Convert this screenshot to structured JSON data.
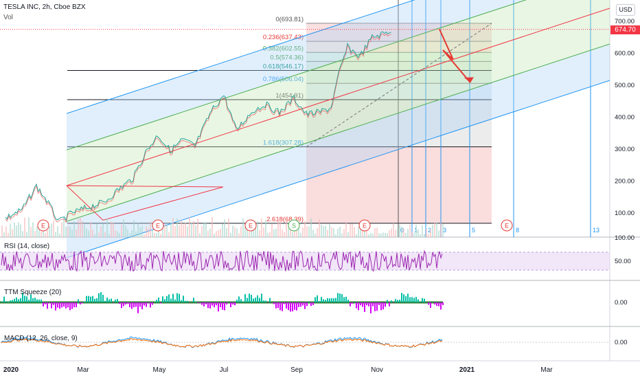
{
  "header": {
    "title": "TESLA INC, 2h, Cboe BZX",
    "volume_label": "Vol",
    "currency_button": "USD",
    "last_price": "674.70"
  },
  "panes": {
    "rsi_label": "RSI (14, close)",
    "squeeze_label": "TTM Squeeze (20)",
    "macd_label": "MACD (12, 26, close, 9)"
  },
  "colors": {
    "up": "#26a69a",
    "down": "#ef5350",
    "channel_outer": "#2196f3",
    "channel_inner": "#4caf50",
    "median": "#f23645",
    "rsi": "#9c27b0",
    "price_badge": "#f23645"
  },
  "chart_data": {
    "type": "line",
    "title": "TESLA INC, 2h, Cboe BZX",
    "x_axis": {
      "ticks": [
        "2020",
        "Mar",
        "May",
        "Jul",
        "Sep",
        "Nov",
        "2021",
        "Mar"
      ]
    },
    "y_axis": {
      "ticks": [
        "100.00",
        "200.00",
        "300.00",
        "400.00",
        "500.00",
        "600.00",
        "700.00"
      ],
      "ylim": [
        25,
        730
      ]
    },
    "price_path": [
      [
        0,
        85
      ],
      [
        0.08,
        110
      ],
      [
        0.15,
        185
      ],
      [
        0.2,
        140
      ],
      [
        0.26,
        72
      ],
      [
        0.32,
        100
      ],
      [
        0.4,
        118
      ],
      [
        0.48,
        135
      ],
      [
        0.55,
        175
      ],
      [
        0.62,
        210
      ],
      [
        0.68,
        290
      ],
      [
        0.74,
        345
      ],
      [
        0.8,
        295
      ],
      [
        0.86,
        330
      ],
      [
        0.92,
        310
      ],
      [
        1.0,
        420
      ],
      [
        1.06,
        470
      ],
      [
        1.12,
        360
      ],
      [
        1.2,
        420
      ],
      [
        1.26,
        440
      ],
      [
        1.33,
        415
      ],
      [
        1.4,
        460
      ],
      [
        1.46,
        410
      ],
      [
        1.52,
        415
      ],
      [
        1.58,
        430
      ],
      [
        1.62,
        540
      ],
      [
        1.66,
        620
      ],
      [
        1.72,
        590
      ],
      [
        1.78,
        650
      ],
      [
        1.84,
        662
      ],
      [
        1.88,
        674.7
      ]
    ],
    "fibonacci_retracement": [
      {
        "label": "0(693.81)",
        "value": 693.81
      },
      {
        "label": "0.236(637.43)",
        "value": 637.43
      },
      {
        "label": "0.382(602.55)",
        "value": 602.55
      },
      {
        "label": "0.5(574.36)",
        "value": 574.36
      },
      {
        "label": "0.618(546.17)",
        "value": 546.17
      },
      {
        "label": "0.786(506.04)",
        "value": 506.04
      },
      {
        "label": "1(454.91)",
        "value": 454.91
      },
      {
        "label": "1.618(307.28)",
        "value": 307.28
      },
      {
        "label": "2.618(68.39)",
        "value": 68.39
      }
    ],
    "fib_time_zone_labels": [
      "0",
      "1",
      "2",
      "3",
      "5",
      "8",
      "13"
    ],
    "event_markers": [
      "E",
      "E",
      "E",
      "S",
      "E",
      "E"
    ],
    "last_price": 674.7,
    "rsi": {
      "label": "RSI (14, close)",
      "ticks": [
        "100.00",
        "50.00"
      ],
      "overbought": 70,
      "oversold": 30
    },
    "ttm_squeeze": {
      "label": "TTM Squeeze (20)",
      "ticks": [
        "0.00"
      ]
    },
    "macd": {
      "label": "MACD (12, 26, close, 9)",
      "ticks": [
        "0.00"
      ]
    }
  }
}
